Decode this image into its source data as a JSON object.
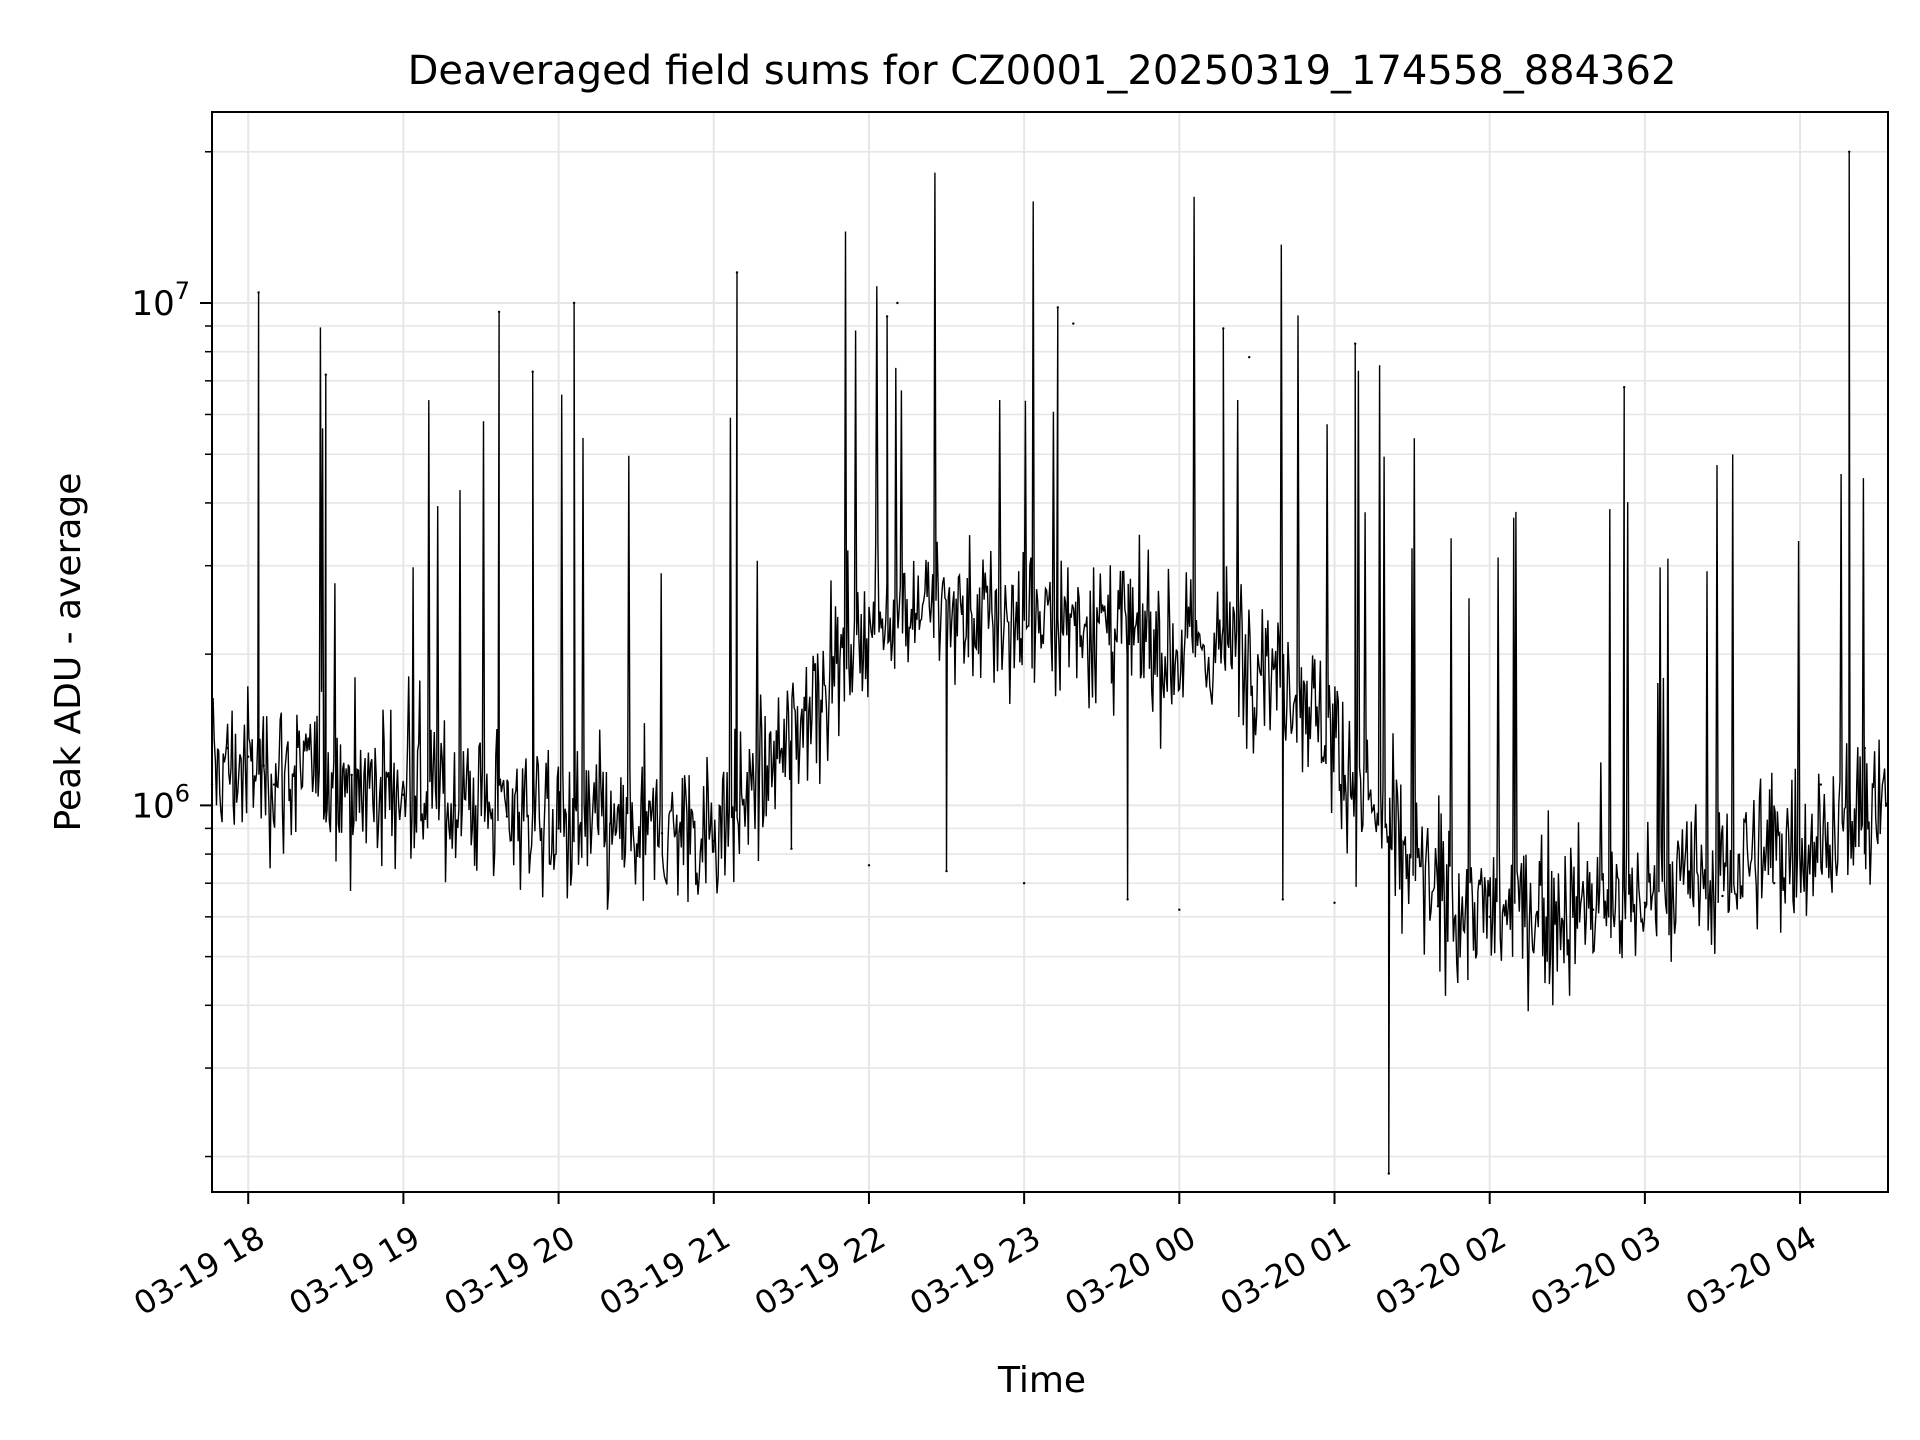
{
  "chart_data": {
    "type": "line",
    "title": "Deaveraged field sums for CZ0001_20250319_174558_884362",
    "xlabel": "Time",
    "ylabel": "Peak ADU - average",
    "yscale": "log",
    "ylim": [
      170000,
      24000000
    ],
    "xlim": [
      "2025-03-19 17:46",
      "2025-03-20 04:34"
    ],
    "grid": true,
    "line_color": "#000000",
    "x_ticks": [
      {
        "value": "2025-03-19 18:00",
        "label": "03-19 18"
      },
      {
        "value": "2025-03-19 19:00",
        "label": "03-19 19"
      },
      {
        "value": "2025-03-19 20:00",
        "label": "03-19 20"
      },
      {
        "value": "2025-03-19 21:00",
        "label": "03-19 21"
      },
      {
        "value": "2025-03-19 22:00",
        "label": "03-19 22"
      },
      {
        "value": "2025-03-19 23:00",
        "label": "03-19 23"
      },
      {
        "value": "2025-03-20 00:00",
        "label": "03-20 00"
      },
      {
        "value": "2025-03-20 01:00",
        "label": "03-20 01"
      },
      {
        "value": "2025-03-20 02:00",
        "label": "03-20 02"
      },
      {
        "value": "2025-03-20 03:00",
        "label": "03-20 03"
      },
      {
        "value": "2025-03-20 04:00",
        "label": "03-20 04"
      }
    ],
    "y_major_ticks": [
      {
        "value": 1000000,
        "base": "10",
        "exp": "6"
      },
      {
        "value": 10000000,
        "base": "10",
        "exp": "7"
      }
    ],
    "series": [
      {
        "values": [
          [
            "2025-03-19 17:46",
            1100000
          ],
          [
            "2025-03-19 17:52",
            1300000
          ],
          [
            "2025-03-19 18:00",
            1250000
          ],
          [
            "2025-03-19 18:04",
            10500000
          ],
          [
            "2025-03-19 18:06",
            1200000
          ],
          [
            "2025-03-19 18:10",
            1100000
          ],
          [
            "2025-03-19 18:30",
            7200000
          ],
          [
            "2025-03-19 18:40",
            1150000
          ],
          [
            "2025-03-19 19:00",
            1050000
          ],
          [
            "2025-03-19 19:20",
            1000000
          ],
          [
            "2025-03-19 19:37",
            9600000
          ],
          [
            "2025-03-19 19:40",
            950000
          ],
          [
            "2025-03-19 19:50",
            7300000
          ],
          [
            "2025-03-19 20:00",
            900000
          ],
          [
            "2025-03-19 20:06",
            10000000
          ],
          [
            "2025-03-19 20:20",
            920000
          ],
          [
            "2025-03-19 20:40",
            880000
          ],
          [
            "2025-03-19 21:00",
            850000
          ],
          [
            "2025-03-19 21:09",
            11500000
          ],
          [
            "2025-03-19 21:30",
            820000
          ],
          [
            "2025-03-19 22:00",
            760000
          ],
          [
            "2025-03-19 22:07",
            9400000
          ],
          [
            "2025-03-19 22:11",
            10000000
          ],
          [
            "2025-03-19 22:30",
            740000
          ],
          [
            "2025-03-19 23:00",
            700000
          ],
          [
            "2025-03-19 23:13",
            9800000
          ],
          [
            "2025-03-19 23:19",
            9100000
          ],
          [
            "2025-03-19 23:40",
            650000
          ],
          [
            "2025-03-20 00:00",
            620000
          ],
          [
            "2025-03-20 00:17",
            8900000
          ],
          [
            "2025-03-20 00:27",
            7800000
          ],
          [
            "2025-03-20 00:40",
            650000
          ],
          [
            "2025-03-20 01:00",
            640000
          ],
          [
            "2025-03-20 01:08",
            8300000
          ],
          [
            "2025-03-20 01:21",
            185000
          ],
          [
            "2025-03-20 01:40",
            630000
          ],
          [
            "2025-03-20 02:00",
            600000
          ],
          [
            "2025-03-20 02:40",
            620000
          ],
          [
            "2025-03-20 02:52",
            6800000
          ],
          [
            "2025-03-20 03:00",
            640000
          ],
          [
            "2025-03-20 03:30",
            660000
          ],
          [
            "2025-03-20 03:50",
            700000
          ],
          [
            "2025-03-20 04:08",
            1100000
          ],
          [
            "2025-03-20 04:19",
            20000000
          ],
          [
            "2025-03-20 04:25",
            1300000
          ],
          [
            "2025-03-20 04:34",
            1000000
          ]
        ]
      }
    ]
  }
}
